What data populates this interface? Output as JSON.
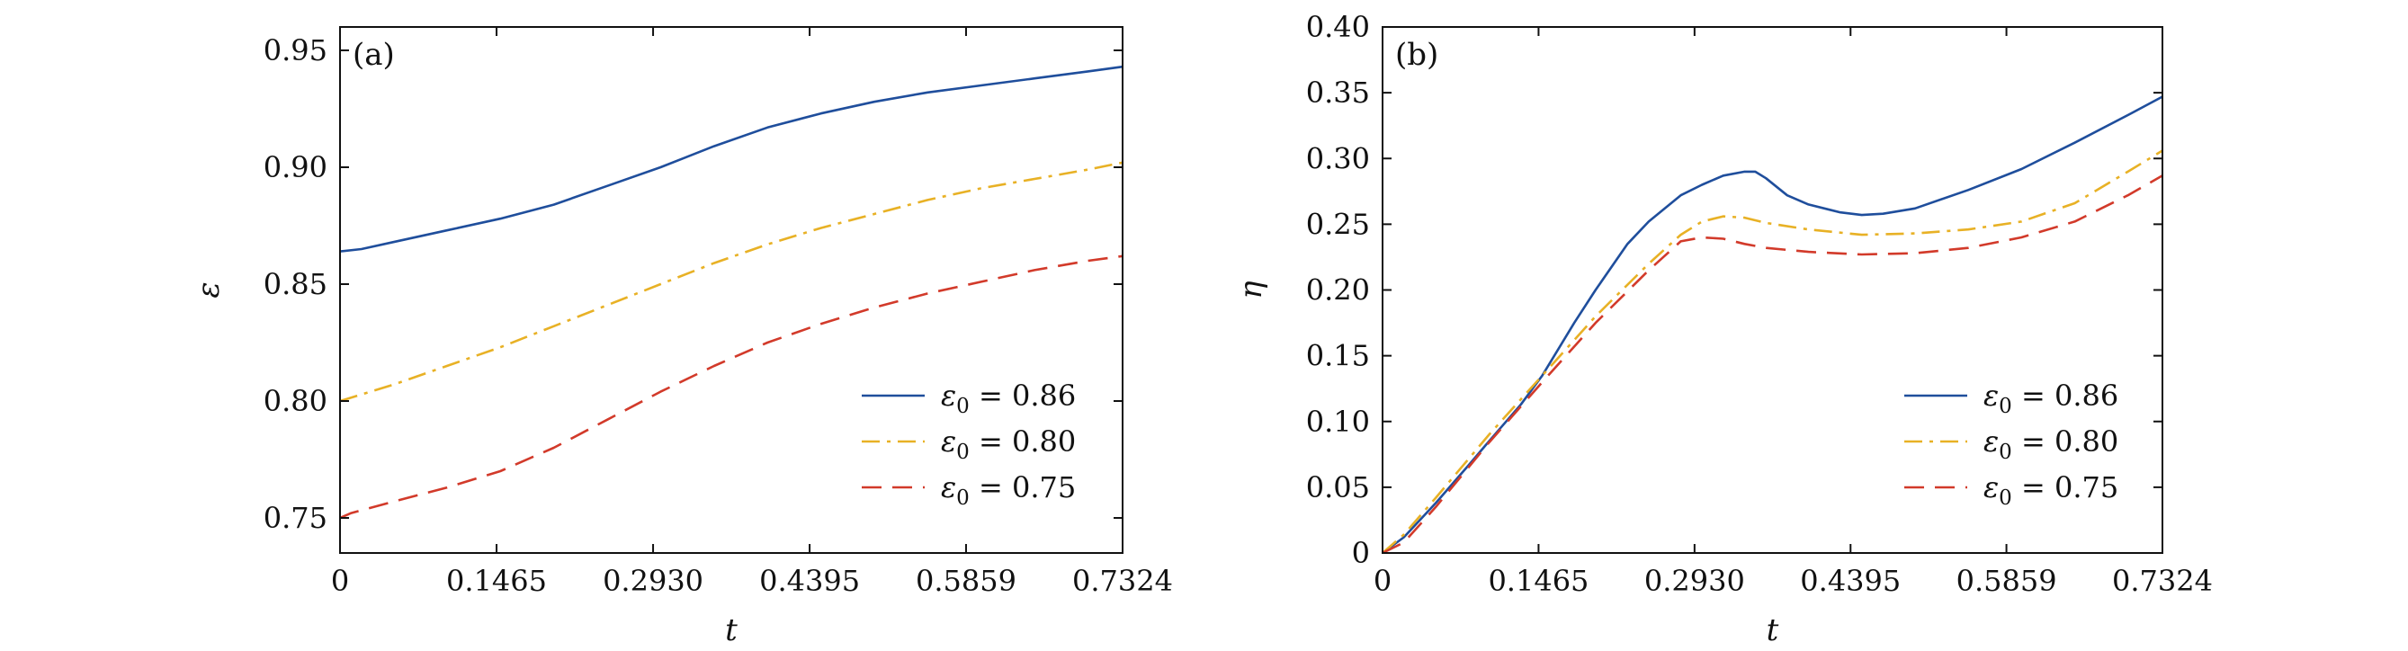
{
  "colors": {
    "blue": "#1f4e9c",
    "yellow": "#e8b125",
    "red": "#d23a2a"
  },
  "chart_data": [
    {
      "type": "line",
      "panel_label": "(a)",
      "xlabel": "t",
      "ylabel": "ε",
      "xlim": [
        0,
        0.7324
      ],
      "ylim": [
        0.735,
        0.96
      ],
      "xticks": [
        0,
        0.1465,
        0.293,
        0.4395,
        0.5859,
        0.7324
      ],
      "xtick_labels": [
        "0",
        "0.1465",
        "0.2930",
        "0.4395",
        "0.5859",
        "0.7324"
      ],
      "yticks": [
        0.75,
        0.8,
        0.85,
        0.9,
        0.95
      ],
      "ytick_labels": [
        "0.75",
        "0.80",
        "0.85",
        "0.90",
        "0.95"
      ],
      "legend_position": "lower-right",
      "series": [
        {
          "name": "0.86",
          "legend_lhs": "ε",
          "legend_sub": "0",
          "legend_rhs": "= 0.86",
          "color": "#1f4e9c",
          "dash": "solid",
          "x": [
            0,
            0.02,
            0.05,
            0.1,
            0.15,
            0.2,
            0.25,
            0.3,
            0.35,
            0.4,
            0.45,
            0.5,
            0.55,
            0.6,
            0.65,
            0.7,
            0.7324
          ],
          "y": [
            0.864,
            0.865,
            0.868,
            0.873,
            0.878,
            0.884,
            0.892,
            0.9,
            0.909,
            0.917,
            0.923,
            0.928,
            0.932,
            0.935,
            0.938,
            0.941,
            0.943
          ]
        },
        {
          "name": "0.80",
          "legend_lhs": "ε",
          "legend_sub": "0",
          "legend_rhs": "= 0.80",
          "color": "#e8b125",
          "dash": "dashdot",
          "x": [
            0,
            0.05,
            0.1,
            0.15,
            0.2,
            0.25,
            0.3,
            0.35,
            0.4,
            0.45,
            0.5,
            0.55,
            0.6,
            0.65,
            0.7,
            0.7324
          ],
          "y": [
            0.8,
            0.807,
            0.815,
            0.823,
            0.832,
            0.841,
            0.85,
            0.859,
            0.867,
            0.874,
            0.88,
            0.886,
            0.891,
            0.895,
            0.899,
            0.902
          ]
        },
        {
          "name": "0.75",
          "legend_lhs": "ε",
          "legend_sub": "0",
          "legend_rhs": "= 0.75",
          "color": "#d23a2a",
          "dash": "dashed",
          "x": [
            0,
            0.01,
            0.05,
            0.1,
            0.15,
            0.2,
            0.25,
            0.3,
            0.35,
            0.4,
            0.45,
            0.5,
            0.55,
            0.6,
            0.65,
            0.7,
            0.7324
          ],
          "y": [
            0.75,
            0.752,
            0.757,
            0.763,
            0.77,
            0.78,
            0.792,
            0.804,
            0.815,
            0.825,
            0.833,
            0.84,
            0.846,
            0.851,
            0.856,
            0.86,
            0.862
          ]
        }
      ]
    },
    {
      "type": "line",
      "panel_label": "(b)",
      "xlabel": "t",
      "ylabel": "η",
      "xlim": [
        0,
        0.7324
      ],
      "ylim": [
        0,
        0.4
      ],
      "xticks": [
        0,
        0.1465,
        0.293,
        0.4395,
        0.5859,
        0.7324
      ],
      "xtick_labels": [
        "0",
        "0.1465",
        "0.2930",
        "0.4395",
        "0.5859",
        "0.7324"
      ],
      "yticks": [
        0,
        0.05,
        0.1,
        0.15,
        0.2,
        0.25,
        0.3,
        0.35,
        0.4
      ],
      "ytick_labels": [
        "0",
        "0.05",
        "0.10",
        "0.15",
        "0.20",
        "0.25",
        "0.30",
        "0.35",
        "0.40"
      ],
      "legend_position": "lower-right",
      "series": [
        {
          "name": "0.86",
          "legend_lhs": "ε",
          "legend_sub": "0",
          "legend_rhs": "= 0.86",
          "color": "#1f4e9c",
          "dash": "solid",
          "x": [
            0,
            0.02,
            0.05,
            0.08,
            0.1,
            0.13,
            0.15,
            0.18,
            0.2,
            0.23,
            0.25,
            0.28,
            0.3,
            0.32,
            0.34,
            0.35,
            0.36,
            0.38,
            0.4,
            0.43,
            0.45,
            0.47,
            0.5,
            0.55,
            0.6,
            0.65,
            0.7,
            0.7324
          ],
          "y": [
            0,
            0.012,
            0.038,
            0.066,
            0.085,
            0.113,
            0.135,
            0.175,
            0.2,
            0.235,
            0.252,
            0.272,
            0.28,
            0.287,
            0.29,
            0.29,
            0.285,
            0.272,
            0.265,
            0.259,
            0.257,
            0.258,
            0.262,
            0.276,
            0.292,
            0.312,
            0.333,
            0.347
          ]
        },
        {
          "name": "0.80",
          "legend_lhs": "ε",
          "legend_sub": "0",
          "legend_rhs": "= 0.80",
          "color": "#e8b125",
          "dash": "dashdot",
          "x": [
            0,
            0.02,
            0.05,
            0.1,
            0.15,
            0.2,
            0.25,
            0.28,
            0.3,
            0.32,
            0.34,
            0.36,
            0.4,
            0.45,
            0.5,
            0.55,
            0.6,
            0.65,
            0.7,
            0.7324
          ],
          "y": [
            0,
            0.014,
            0.042,
            0.09,
            0.135,
            0.18,
            0.22,
            0.242,
            0.252,
            0.256,
            0.255,
            0.251,
            0.246,
            0.242,
            0.243,
            0.246,
            0.252,
            0.266,
            0.29,
            0.306
          ]
        },
        {
          "name": "0.75",
          "legend_lhs": "ε",
          "legend_sub": "0",
          "legend_rhs": "= 0.75",
          "color": "#d23a2a",
          "dash": "dashed",
          "x": [
            0,
            0.02,
            0.05,
            0.1,
            0.15,
            0.2,
            0.25,
            0.28,
            0.3,
            0.32,
            0.34,
            0.36,
            0.4,
            0.45,
            0.5,
            0.55,
            0.6,
            0.65,
            0.7,
            0.7324
          ],
          "y": [
            0,
            0.008,
            0.035,
            0.084,
            0.13,
            0.175,
            0.215,
            0.237,
            0.24,
            0.239,
            0.235,
            0.232,
            0.229,
            0.227,
            0.228,
            0.232,
            0.24,
            0.252,
            0.272,
            0.287
          ]
        }
      ]
    }
  ]
}
